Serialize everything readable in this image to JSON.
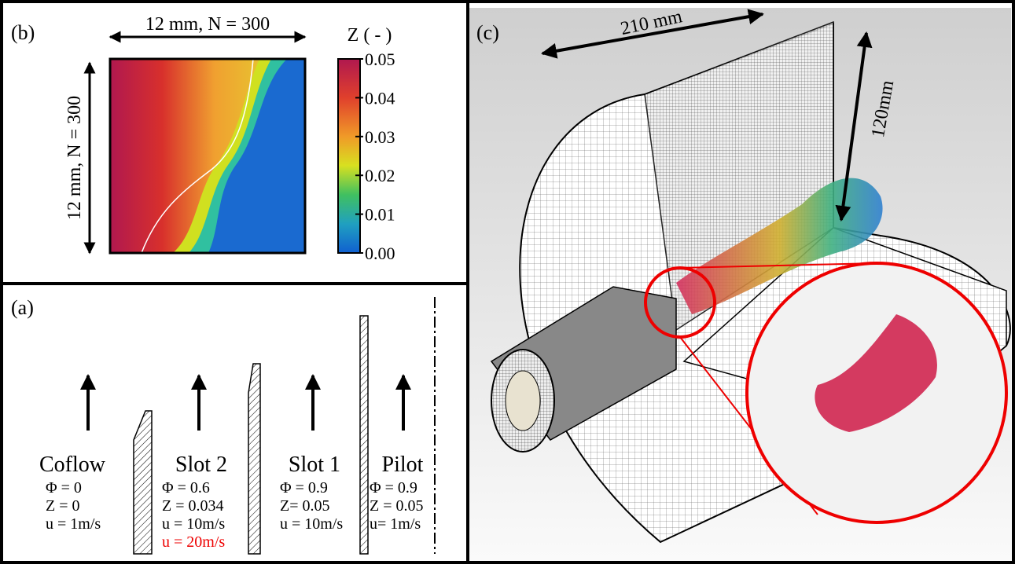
{
  "panel_b": {
    "label": "(b)",
    "width_label": "12 mm, N = 300",
    "height_label": "12 mm, N = 300",
    "colorbar_title": "Z ( - )",
    "colorbar_ticks": [
      "0.05",
      "0.04",
      "0.03",
      "0.02",
      "0.01",
      "0.00"
    ]
  },
  "panel_a": {
    "label": "(a)",
    "inlets": [
      {
        "name": "Coflow",
        "lines": [
          "Φ = 0",
          "Z = 0",
          "u = 1m/s"
        ]
      },
      {
        "name": "Slot 2",
        "lines": [
          "Φ = 0.6",
          "Z = 0.034",
          "u = 10m/s",
          "u = 20m/s"
        ]
      },
      {
        "name": "Slot 1",
        "lines": [
          "Φ = 0.9",
          "Z= 0.05",
          "u = 10m/s"
        ]
      },
      {
        "name": "Pilot",
        "lines": [
          "Φ = 0.9",
          "Z = 0.05",
          "u= 1m/s"
        ]
      }
    ]
  },
  "panel_c": {
    "label": "(c)",
    "length_label": "210 mm",
    "radius_label": "120mm"
  }
}
